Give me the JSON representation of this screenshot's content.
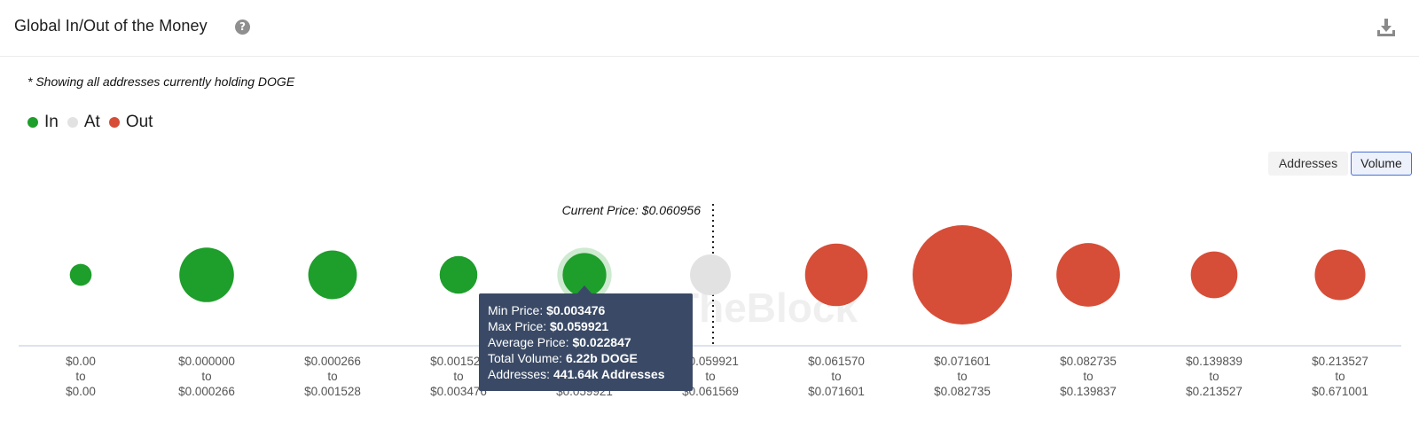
{
  "header": {
    "title": "Global In/Out of the Money",
    "help_icon": "question-circle-icon",
    "download_icon": "download-icon"
  },
  "note": "* Showing all addresses currently holding DOGE",
  "legend": [
    {
      "label": "In",
      "color": "#1e9e2b"
    },
    {
      "label": "At",
      "color": "#e2e2e2"
    },
    {
      "label": "Out",
      "color": "#d64e38"
    }
  ],
  "toggles": {
    "addresses": "Addresses",
    "volume": "Volume",
    "active": "Volume"
  },
  "watermark": "TheBlock",
  "tooltip": {
    "min_label": "Min Price:",
    "min_value": "$0.003476",
    "max_label": "Max Price:",
    "max_value": "$0.059921",
    "avg_label": "Average Price:",
    "avg_value": "$0.022847",
    "vol_label": "Total Volume:",
    "vol_value": "6.22b DOGE",
    "addr_label": "Addresses:",
    "addr_value": "441.64k Addresses"
  },
  "chart_data": {
    "type": "bubble",
    "current_price_label": "Current Price: $0.060956",
    "current_price": 0.060956,
    "categories": [
      {
        "from": "$0.00",
        "to": "$0.00",
        "status": "In",
        "relative_size": 0.22
      },
      {
        "from": "$0.000000",
        "to": "$0.000266",
        "status": "In",
        "relative_size": 0.55
      },
      {
        "from": "$0.000266",
        "to": "$0.001528",
        "status": "In",
        "relative_size": 0.49
      },
      {
        "from": "$0.001528",
        "to": "$0.003476",
        "status": "In",
        "relative_size": 0.38
      },
      {
        "from": "$0.003476",
        "to": "$0.059921",
        "status": "In",
        "relative_size": 0.44,
        "highlighted": true
      },
      {
        "from": "$0.059921",
        "to": "$0.061569",
        "status": "At",
        "relative_size": 0.41
      },
      {
        "from": "$0.061570",
        "to": "$0.071601",
        "status": "Out",
        "relative_size": 0.63
      },
      {
        "from": "$0.071601",
        "to": "$0.082735",
        "status": "Out",
        "relative_size": 1.0
      },
      {
        "from": "$0.082735",
        "to": "$0.139837",
        "status": "Out",
        "relative_size": 0.64
      },
      {
        "from": "$0.139839",
        "to": "$0.213527",
        "status": "Out",
        "relative_size": 0.47
      },
      {
        "from": "$0.213527",
        "to": "$0.671001",
        "status": "Out",
        "relative_size": 0.51
      }
    ],
    "to_word": "to",
    "colors": {
      "In": "#1e9e2b",
      "At": "#e2e2e2",
      "Out": "#d64e38",
      "axis": "#b8c6e3"
    }
  }
}
